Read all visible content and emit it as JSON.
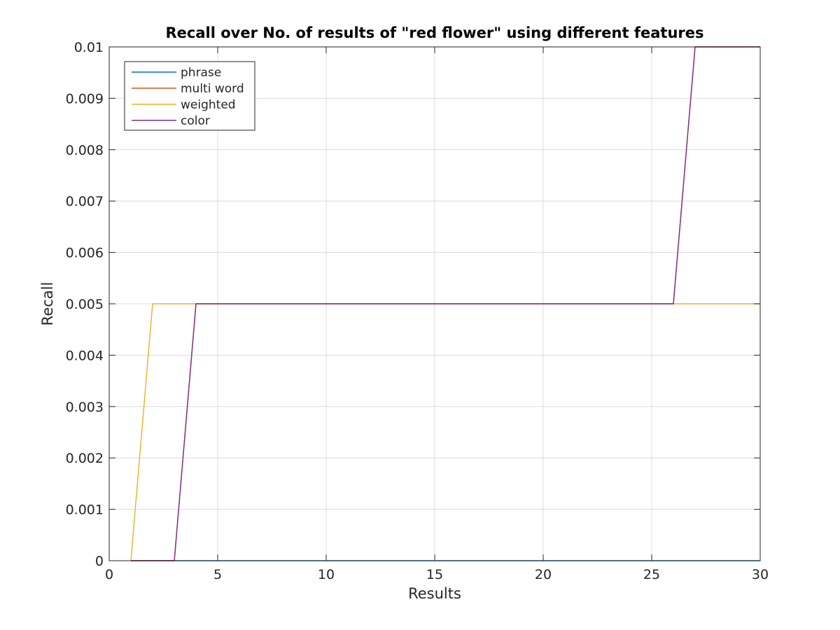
{
  "chart_data": {
    "type": "line",
    "title": "Recall over No. of results of \"red flower\" using different features",
    "xlabel": "Results",
    "ylabel": "Recall",
    "xlim": [
      0,
      30
    ],
    "ylim": [
      0,
      0.01
    ],
    "xticks": [
      0,
      5,
      10,
      15,
      20,
      25,
      30
    ],
    "xtick_labels": [
      "0",
      "5",
      "10",
      "15",
      "20",
      "25",
      "30"
    ],
    "yticks": [
      0,
      0.001,
      0.002,
      0.003,
      0.004,
      0.005,
      0.006,
      0.007,
      0.008,
      0.009,
      0.01
    ],
    "ytick_labels": [
      "0",
      "0.001",
      "0.002",
      "0.003",
      "0.004",
      "0.005",
      "0.006",
      "0.007",
      "0.008",
      "0.009",
      "0.01"
    ],
    "grid": true,
    "legend_position": "top-left",
    "series": [
      {
        "name": "phrase",
        "color": "#0072bd",
        "x": [
          1,
          30
        ],
        "y": [
          0,
          0
        ]
      },
      {
        "name": "multi word",
        "color": "#d95319",
        "x": [
          1,
          2,
          3,
          4,
          26,
          27,
          30
        ],
        "y": [
          0,
          0,
          0,
          0.005,
          0.005,
          0.01,
          0.01
        ]
      },
      {
        "name": "weighted",
        "color": "#edb120",
        "x": [
          1,
          2,
          30
        ],
        "y": [
          0,
          0.005,
          0.005
        ]
      },
      {
        "name": "color",
        "color": "#7e2f8e",
        "x": [
          1,
          2,
          3,
          4,
          26,
          27,
          30
        ],
        "y": [
          0,
          0,
          0,
          0.005,
          0.005,
          0.01,
          0.01
        ]
      }
    ]
  }
}
